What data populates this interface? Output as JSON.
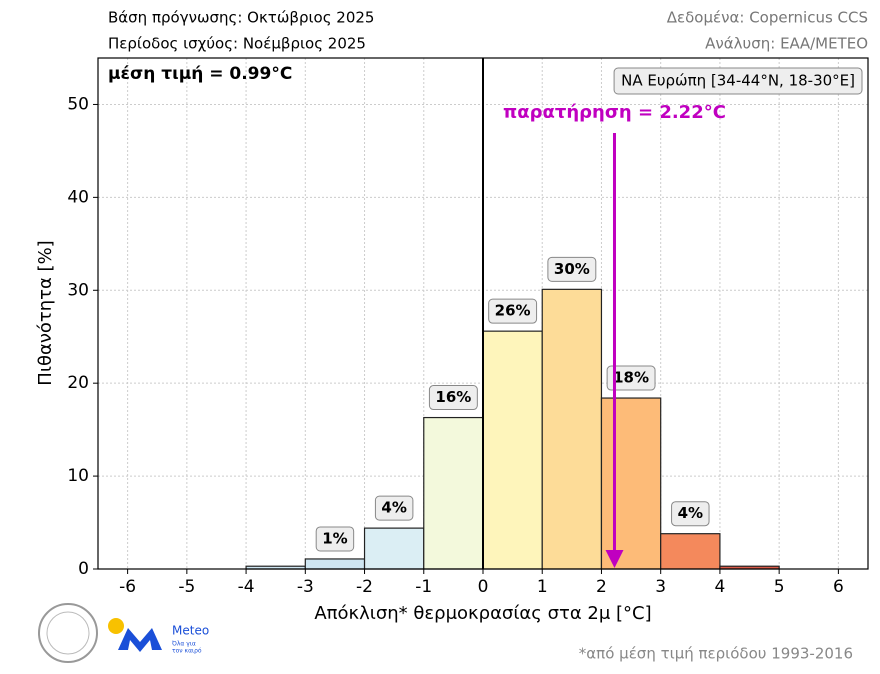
{
  "chart_data": {
    "type": "histogram",
    "header": {
      "left": [
        "Βάση πρόγνωσης: Οκτώβριος 2025",
        "Περίοδος ισχύος: Νοέμβριος 2025"
      ],
      "right": [
        "Δεδομένα: Copernicus CCS",
        "Ανάλυση: ΕΑΑ/METEO"
      ]
    },
    "mean_annotation": "μέση τιμή = 0.99°C",
    "region": "ΝΑ Ευρώπη [34-44°N, 18-30°E]",
    "observation": {
      "label": "παρατήρηση = 2.22°C",
      "value": 2.22,
      "color": "#c000c0"
    },
    "reference_line_x": 0,
    "bins": [
      -4,
      -3,
      -2,
      -1,
      0,
      1,
      2,
      3,
      4,
      5
    ],
    "values": [
      0.3,
      1.08,
      4.4,
      16.3,
      25.6,
      30.1,
      18.4,
      3.8,
      0.3
    ],
    "value_labels": [
      null,
      "1%",
      "4%",
      "16%",
      "26%",
      "30%",
      "18%",
      "4%",
      null
    ],
    "colors": [
      "#cfe6f2",
      "#cfe6f2",
      "#dbeef4",
      "#f3f9dc",
      "#fef5bb",
      "#fddc98",
      "#fdbb78",
      "#f4895c",
      "#d95a48"
    ],
    "xlabel": "Απόκλιση* θερμοκρασίας στα 2μ [°C]",
    "ylabel": "Πιθανότητα [%]",
    "xlim": [
      -6.5,
      6.5
    ],
    "xticks": [
      -6,
      -5,
      -4,
      -3,
      -2,
      -1,
      0,
      1,
      2,
      3,
      4,
      5,
      6
    ],
    "ylim": [
      0,
      55
    ],
    "yticks": [
      0,
      10,
      20,
      30,
      40,
      50
    ],
    "grid": true,
    "footnote": "*από μέση τιμή περιόδου 1993-2016",
    "logo": {
      "name": "Meteo",
      "tagline": [
        "Όλα για",
        "τον καιρό"
      ]
    }
  }
}
